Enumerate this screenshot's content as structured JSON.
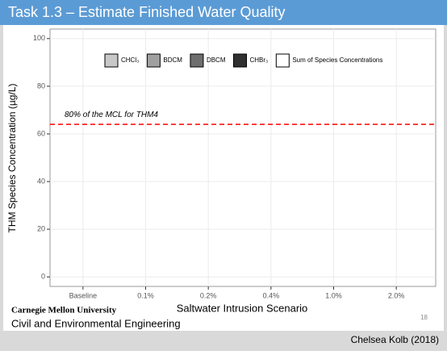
{
  "slide": {
    "title": "Task 1.3 – Estimate Finished Water Quality",
    "logo": [
      "Carnegie Mellon University",
      "Civil and Environmental Engineering"
    ],
    "page_number": "18",
    "footer": "Chelsea Kolb (2018)"
  },
  "chart_data": {
    "type": "bar",
    "categories": [
      "Baseline",
      "0.1%",
      "0.2%",
      "0.4%",
      "1.0%",
      "2.0%"
    ],
    "series": [
      {
        "name": "CHCl₃",
        "color": "#c8c8c8",
        "values": [
          null,
          null,
          null,
          null,
          null,
          null
        ]
      },
      {
        "name": "BDCM",
        "color": "#a0a0a0",
        "values": [
          null,
          null,
          null,
          null,
          null,
          null
        ]
      },
      {
        "name": "DBCM",
        "color": "#6e6e6e",
        "values": [
          null,
          null,
          null,
          null,
          null,
          null
        ]
      },
      {
        "name": "CHBr₃",
        "color": "#303030",
        "values": [
          null,
          null,
          null,
          null,
          null,
          null
        ]
      },
      {
        "name": "Sum of Species Concentrations",
        "color": "#ffffff",
        "values": [
          null,
          null,
          null,
          null,
          null,
          null
        ]
      }
    ],
    "xlabel": "Saltwater Intrusion Scenario",
    "ylabel": "THM Species Concentration (µg/L)",
    "ylim": [
      -4,
      104
    ],
    "yticks": [
      0,
      20,
      40,
      60,
      80,
      100
    ],
    "grid": true,
    "reference_line": {
      "value": 64,
      "label": "80% of the MCL for THM4",
      "color": "#ff0000"
    }
  }
}
